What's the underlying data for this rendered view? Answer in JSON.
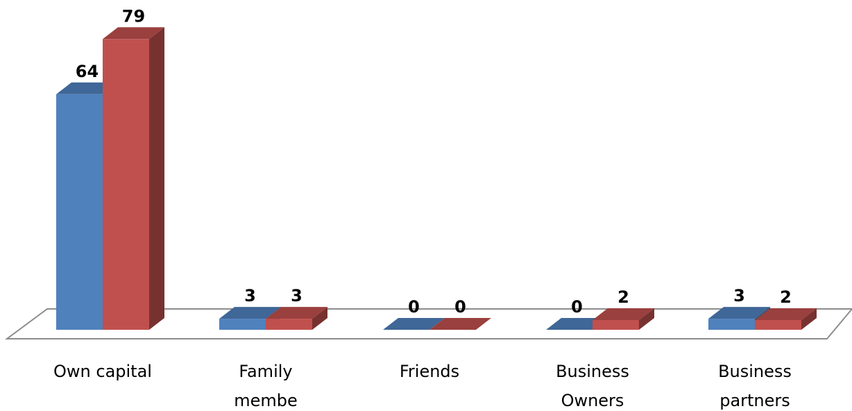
{
  "chart_data": {
    "type": "bar",
    "title": "",
    "xlabel": "",
    "ylabel": "",
    "ylim": [
      0,
      80
    ],
    "grid": false,
    "categories": [
      "Own capital",
      "Family membe",
      "Friends",
      "Business Owners",
      "Business partners"
    ],
    "category_lines": [
      [
        "Own capital"
      ],
      [
        "Family",
        "membe"
      ],
      [
        "Friends"
      ],
      [
        "Business",
        "Owners"
      ],
      [
        "Business",
        "partners"
      ]
    ],
    "series": [
      {
        "values": [
          64,
          3,
          0,
          0,
          3
        ],
        "color": "#4F81BD"
      },
      {
        "values": [
          79,
          3,
          0,
          2,
          2
        ],
        "color": "#C0504D"
      }
    ]
  }
}
